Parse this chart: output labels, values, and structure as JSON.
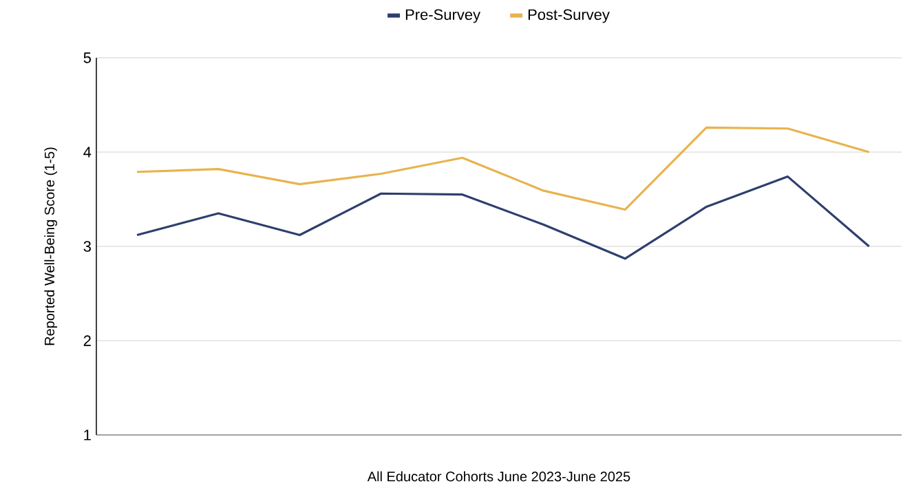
{
  "chart_data": {
    "type": "line",
    "xlabel": "All Educator Cohorts June 2023-June 2025",
    "ylabel": "Reported Well-Being Score (1-5)",
    "categories": [
      null,
      null,
      null,
      null,
      null,
      null,
      null,
      null,
      null,
      null
    ],
    "series": [
      {
        "name": "Pre-Survey",
        "color": "#2e3f6e",
        "values": [
          3.12,
          3.35,
          3.12,
          3.56,
          3.55,
          3.23,
          2.87,
          3.42,
          3.74,
          3.0
        ]
      },
      {
        "name": "Post-Survey",
        "color": "#e8b34d",
        "values": [
          3.79,
          3.82,
          3.66,
          3.77,
          3.94,
          3.59,
          3.39,
          4.26,
          4.25,
          4.0
        ]
      }
    ],
    "ylim": [
      1,
      5
    ],
    "yticks": [
      1,
      2,
      3,
      4,
      5
    ],
    "grid": "y",
    "legend": "top",
    "marker": "none",
    "line_style": "solid"
  }
}
